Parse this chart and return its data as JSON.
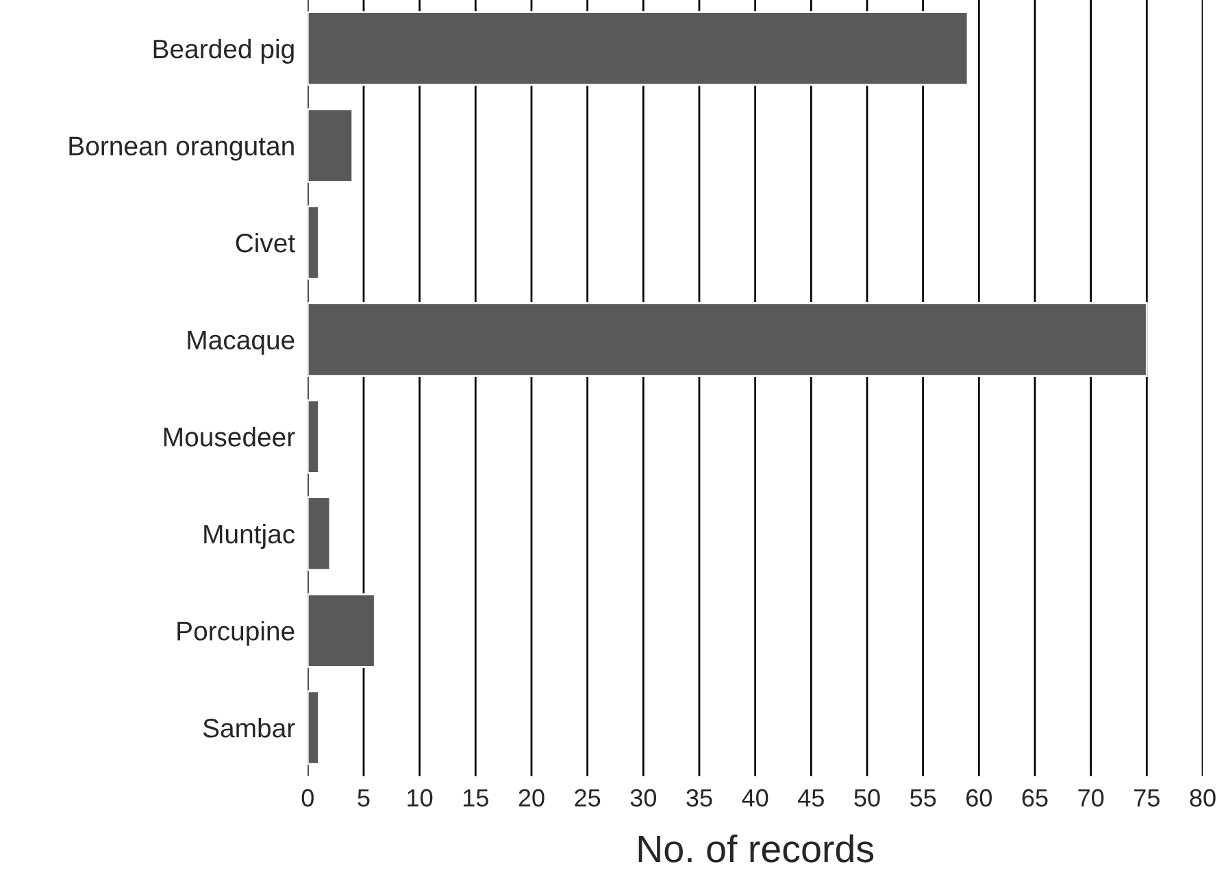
{
  "chart_data": {
    "type": "bar",
    "orientation": "horizontal",
    "xlabel": "No. of records",
    "categories": [
      "Bearded pig",
      "Bornean orangutan",
      "Civet",
      "Macaque",
      "Mousedeer",
      "Muntjac",
      "Porcupine",
      "Sambar"
    ],
    "values": [
      59,
      4,
      1,
      75,
      1,
      2,
      6,
      1
    ],
    "color": "#595959",
    "xlim": [
      0,
      80
    ],
    "xticks": [
      0,
      5,
      10,
      15,
      20,
      25,
      30,
      35,
      40,
      45,
      50,
      55,
      60,
      65,
      70,
      75,
      80
    ],
    "grid": "x",
    "legend": false
  }
}
